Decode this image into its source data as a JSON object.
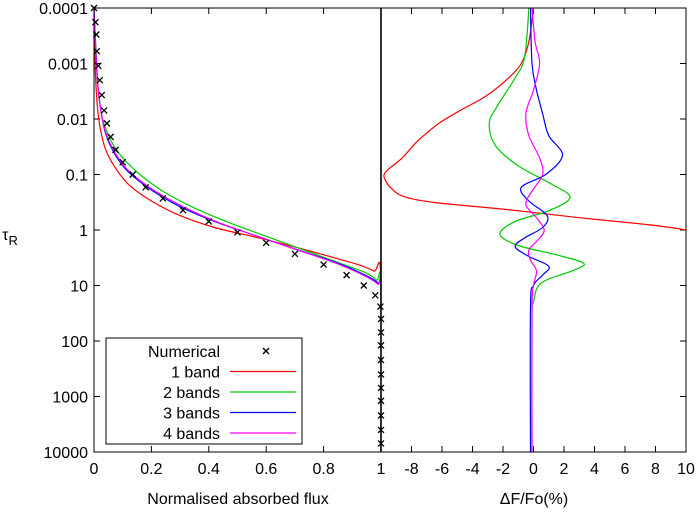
{
  "chart_data": [
    {
      "type": "line",
      "panel": "left",
      "xlabel": "Normalised absorbed flux",
      "ylabel": "τR",
      "ylabel_main": "τ",
      "ylabel_sub": "R",
      "xlim": [
        0,
        1
      ],
      "ylim": [
        0.0001,
        10000
      ],
      "yscale": "log",
      "y_reversed": true,
      "xticks": [
        "0",
        "0.2",
        "0.4",
        "0.6",
        "0.8",
        "1"
      ],
      "yticks": [
        "0.0001",
        "0.001",
        "0.01",
        "0.1",
        "1",
        "10",
        "100",
        "1000",
        "10000"
      ],
      "legend": {
        "placement": "bottom-left",
        "entries": [
          "Numerical",
          "1 band",
          "2 bands",
          "3 bands",
          "4 bands"
        ]
      },
      "series": [
        {
          "name": "Numerical",
          "marker": "x",
          "color": "#000000",
          "points": [
            [
              0.0,
              0.0001
            ],
            [
              0.005,
              0.00018
            ],
            [
              0.008,
              0.0003
            ],
            [
              0.01,
              0.0006
            ],
            [
              0.015,
              0.0011
            ],
            [
              0.02,
              0.002
            ],
            [
              0.027,
              0.0037
            ],
            [
              0.035,
              0.007
            ],
            [
              0.045,
              0.012
            ],
            [
              0.058,
              0.021
            ],
            [
              0.075,
              0.036
            ],
            [
              0.1,
              0.06
            ],
            [
              0.135,
              0.1
            ],
            [
              0.18,
              0.17
            ],
            [
              0.24,
              0.27
            ],
            [
              0.31,
              0.44
            ],
            [
              0.4,
              0.7
            ],
            [
              0.5,
              1.1
            ],
            [
              0.6,
              1.7
            ],
            [
              0.7,
              2.7
            ],
            [
              0.8,
              4.2
            ],
            [
              0.88,
              6.5
            ],
            [
              0.94,
              10
            ],
            [
              0.98,
              15
            ],
            [
              0.998,
              24
            ],
            [
              1.0,
              40
            ],
            [
              1.0,
              70
            ],
            [
              1.0,
              120
            ],
            [
              1.0,
              220
            ],
            [
              1.0,
              400
            ],
            [
              1.0,
              700
            ],
            [
              1.0,
              1200
            ],
            [
              1.0,
              2200
            ],
            [
              1.0,
              4000
            ],
            [
              1.0,
              7000
            ]
          ]
        },
        {
          "name": "1 band",
          "color": "#ff0000",
          "points": [
            [
              0.0,
              0.0001
            ],
            [
              0.002,
              0.0005
            ],
            [
              0.006,
              0.002
            ],
            [
              0.012,
              0.006
            ],
            [
              0.022,
              0.015
            ],
            [
              0.04,
              0.035
            ],
            [
              0.07,
              0.07
            ],
            [
              0.12,
              0.15
            ],
            [
              0.2,
              0.3
            ],
            [
              0.3,
              0.55
            ],
            [
              0.42,
              0.9
            ],
            [
              0.55,
              1.3
            ],
            [
              0.68,
              1.9
            ],
            [
              0.8,
              2.8
            ],
            [
              0.92,
              4.2
            ],
            [
              0.975,
              5.5
            ],
            [
              1.0,
              7
            ],
            [
              1.0,
              10000
            ]
          ],
          "diff": [
            [
              0,
              0.0001
            ],
            [
              -0.3,
              0.0004
            ],
            [
              -0.8,
              0.001
            ],
            [
              -1.8,
              0.002
            ],
            [
              -3.2,
              0.004
            ],
            [
              -4.8,
              0.007
            ],
            [
              -6.2,
              0.012
            ],
            [
              -7.6,
              0.025
            ],
            [
              -8.6,
              0.05
            ],
            [
              -9.5,
              0.08
            ],
            [
              -9.8,
              0.1
            ],
            [
              -9.7,
              0.13
            ],
            [
              -9.3,
              0.18
            ],
            [
              -8.5,
              0.25
            ],
            [
              -6.5,
              0.32
            ],
            [
              -2,
              0.42
            ],
            [
              3,
              0.6
            ],
            [
              7.5,
              0.8
            ],
            [
              10,
              1.0
            ],
            [
              10.5,
              1.2
            ]
          ]
        },
        {
          "name": "2 bands",
          "color": "#00cc00",
          "points": [
            [
              0.0,
              0.0001
            ],
            [
              0.004,
              0.0003
            ],
            [
              0.009,
              0.001
            ],
            [
              0.015,
              0.003
            ],
            [
              0.03,
              0.01
            ],
            [
              0.06,
              0.025
            ],
            [
              0.1,
              0.05
            ],
            [
              0.16,
              0.1
            ],
            [
              0.24,
              0.2
            ],
            [
              0.34,
              0.38
            ],
            [
              0.46,
              0.7
            ],
            [
              0.6,
              1.3
            ],
            [
              0.75,
              2.5
            ],
            [
              0.87,
              4.2
            ],
            [
              0.95,
              6
            ],
            [
              0.985,
              8
            ],
            [
              1.0,
              10
            ],
            [
              1.0,
              10000
            ]
          ],
          "diff": [
            [
              -0.3,
              0.0001
            ],
            [
              -0.6,
              0.0008
            ],
            [
              -1.3,
              0.002
            ],
            [
              -2.4,
              0.006
            ],
            [
              -2.9,
              0.012
            ],
            [
              -2.5,
              0.03
            ],
            [
              -1.0,
              0.07
            ],
            [
              1.2,
              0.15
            ],
            [
              2.4,
              0.26
            ],
            [
              1.0,
              0.45
            ],
            [
              -1.2,
              0.7
            ],
            [
              -2.2,
              1.2
            ],
            [
              -1.0,
              1.9
            ],
            [
              1.5,
              2.8
            ],
            [
              3.3,
              4.0
            ],
            [
              2.5,
              5.5
            ],
            [
              0.5,
              9
            ],
            [
              0,
              20
            ],
            [
              -0.1,
              40
            ],
            [
              -0.1,
              10000
            ]
          ]
        },
        {
          "name": "3 bands",
          "color": "#0000ff",
          "points": [
            [
              0.0,
              0.0001
            ],
            [
              0.006,
              0.0005
            ],
            [
              0.012,
              0.002
            ],
            [
              0.022,
              0.006
            ],
            [
              0.04,
              0.018
            ],
            [
              0.075,
              0.045
            ],
            [
              0.12,
              0.09
            ],
            [
              0.2,
              0.19
            ],
            [
              0.3,
              0.38
            ],
            [
              0.42,
              0.7
            ],
            [
              0.55,
              1.2
            ],
            [
              0.7,
              2.2
            ],
            [
              0.84,
              3.8
            ],
            [
              0.94,
              6.3
            ],
            [
              0.99,
              9
            ],
            [
              1.0,
              12
            ],
            [
              1.0,
              10000
            ]
          ],
          "diff": [
            [
              -0.2,
              0.0001
            ],
            [
              -0.1,
              0.001
            ],
            [
              0.2,
              0.003
            ],
            [
              0.6,
              0.008
            ],
            [
              1.0,
              0.02
            ],
            [
              1.9,
              0.045
            ],
            [
              0.8,
              0.1
            ],
            [
              -0.8,
              0.17
            ],
            [
              -0.3,
              0.3
            ],
            [
              0.9,
              0.55
            ],
            [
              0.6,
              0.9
            ],
            [
              -0.6,
              1.4
            ],
            [
              -1.2,
              2.0
            ],
            [
              -0.3,
              3.0
            ],
            [
              1.0,
              4.5
            ],
            [
              0.6,
              6.5
            ],
            [
              0,
              10
            ],
            [
              -0.2,
              25
            ],
            [
              -0.2,
              10000
            ]
          ]
        },
        {
          "name": "4 bands",
          "color": "#ff00ff",
          "points": [
            [
              0.0,
              0.0001
            ],
            [
              0.006,
              0.0006
            ],
            [
              0.012,
              0.002
            ],
            [
              0.022,
              0.006
            ],
            [
              0.04,
              0.017
            ],
            [
              0.075,
              0.042
            ],
            [
              0.12,
              0.085
            ],
            [
              0.2,
              0.18
            ],
            [
              0.31,
              0.38
            ],
            [
              0.43,
              0.72
            ],
            [
              0.56,
              1.25
            ],
            [
              0.71,
              2.3
            ],
            [
              0.85,
              4.1
            ],
            [
              0.95,
              7
            ],
            [
              0.99,
              9.5
            ],
            [
              1.0,
              11
            ],
            [
              1.0,
              10000
            ]
          ],
          "diff": [
            [
              -0.1,
              0.0001
            ],
            [
              0.1,
              0.0004
            ],
            [
              0.4,
              0.001
            ],
            [
              0.0,
              0.003
            ],
            [
              -0.5,
              0.008
            ],
            [
              -0.3,
              0.02
            ],
            [
              0.4,
              0.05
            ],
            [
              0.6,
              0.1
            ],
            [
              -0.1,
              0.2
            ],
            [
              -0.5,
              0.35
            ],
            [
              0.2,
              0.6
            ],
            [
              0.7,
              1.0
            ],
            [
              0.3,
              1.5
            ],
            [
              -0.3,
              2.3
            ],
            [
              -0.2,
              3.5
            ],
            [
              0.2,
              5.5
            ],
            [
              0,
              10
            ],
            [
              -0.1,
              30
            ],
            [
              -0.1,
              10000
            ]
          ]
        }
      ]
    },
    {
      "type": "line",
      "panel": "right",
      "xlabel": "ΔF/Fo(%)",
      "xlim": [
        -10,
        10
      ],
      "xticks": [
        "-8",
        "-6",
        "-4",
        "-2",
        "0",
        "2",
        "4",
        "6",
        "8",
        "10"
      ],
      "yscale": "log",
      "y_reversed": true,
      "ylim": [
        0.0001,
        10000
      ]
    }
  ]
}
